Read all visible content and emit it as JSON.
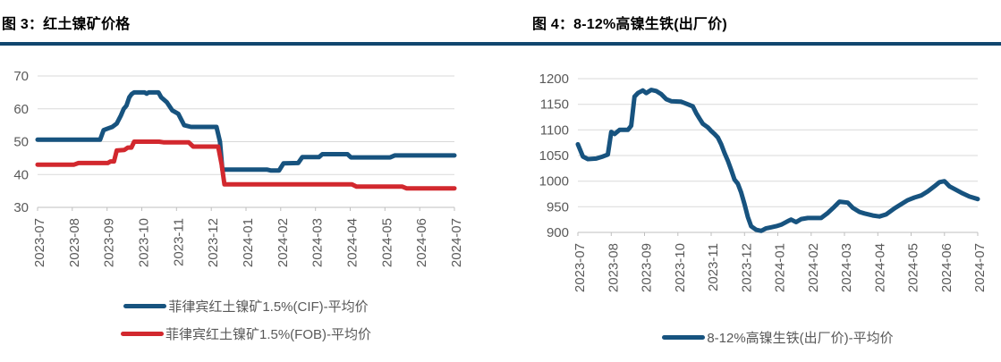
{
  "colors": {
    "title_rule": "#10466E",
    "grid": "#D9D9D9",
    "axis": "#BFBFBF",
    "tick_label": "#595959",
    "legend_text": "#595959"
  },
  "chart_data": [
    {
      "id": "chart0",
      "type": "line",
      "title": "图 3：红土镍矿价格",
      "x_categories": [
        "2023-07",
        "2023-08",
        "2023-09",
        "2023-10",
        "2023-11",
        "2023-12",
        "2024-01",
        "2024-02",
        "2024-03",
        "2024-04",
        "2024-05",
        "2024-06",
        "2024-07"
      ],
      "ylim": [
        30,
        70
      ],
      "y_step": 10,
      "grid": true,
      "legend_position": "bottom",
      "series": [
        {
          "name": "菲律宾红土镍矿1.5%(CIF)-平均价",
          "color": "#17537F",
          "points": [
            [
              0,
              50.6
            ],
            [
              1.8,
              50.6
            ],
            [
              1.9,
              53.5
            ],
            [
              2.02,
              54
            ],
            [
              2.15,
              54.5
            ],
            [
              2.28,
              55.5
            ],
            [
              2.4,
              58
            ],
            [
              2.48,
              60
            ],
            [
              2.56,
              61
            ],
            [
              2.64,
              63.5
            ],
            [
              2.71,
              64.5
            ],
            [
              2.78,
              65
            ],
            [
              3.08,
              65
            ],
            [
              3.14,
              64.6
            ],
            [
              3.2,
              65
            ],
            [
              3.48,
              65
            ],
            [
              3.56,
              63.5
            ],
            [
              3.72,
              62
            ],
            [
              3.88,
              59.5
            ],
            [
              4.05,
              58.5
            ],
            [
              4.22,
              55
            ],
            [
              4.42,
              54.5
            ],
            [
              5.15,
              54.5
            ],
            [
              5.25,
              50
            ],
            [
              5.32,
              41.5
            ],
            [
              6.6,
              41.5
            ],
            [
              6.72,
              41.2
            ],
            [
              6.95,
              41.2
            ],
            [
              7.08,
              43.4
            ],
            [
              7.5,
              43.5
            ],
            [
              7.62,
              45.3
            ],
            [
              8.1,
              45.3
            ],
            [
              8.2,
              46.2
            ],
            [
              8.92,
              46.2
            ],
            [
              9.02,
              45.2
            ],
            [
              10.15,
              45.2
            ],
            [
              10.28,
              45.8
            ],
            [
              12,
              45.8
            ]
          ]
        },
        {
          "name": "菲律宾红土镍矿1.5%(FOB)-平均价",
          "color": "#D2282E",
          "points": [
            [
              0,
              43
            ],
            [
              1.05,
              43
            ],
            [
              1.18,
              43.5
            ],
            [
              2.02,
              43.5
            ],
            [
              2.1,
              44
            ],
            [
              2.2,
              44
            ],
            [
              2.28,
              47.3
            ],
            [
              2.5,
              47.5
            ],
            [
              2.6,
              48.2
            ],
            [
              2.7,
              48.2
            ],
            [
              2.78,
              50
            ],
            [
              3.5,
              50
            ],
            [
              3.62,
              49.8
            ],
            [
              4.35,
              49.8
            ],
            [
              4.48,
              48.5
            ],
            [
              5.2,
              48.5
            ],
            [
              5.3,
              43
            ],
            [
              5.38,
              37
            ],
            [
              9.05,
              37
            ],
            [
              9.18,
              36.3
            ],
            [
              10.5,
              36.3
            ],
            [
              10.62,
              35.8
            ],
            [
              12,
              35.8
            ]
          ]
        }
      ]
    },
    {
      "id": "chart1",
      "type": "line",
      "title": "图 4：8-12%高镍生铁(出厂价)",
      "x_categories": [
        "2023-07",
        "2023-08",
        "2023-09",
        "2023-10",
        "2023-11",
        "2023-12",
        "2024-01",
        "2024-02",
        "2024-03",
        "2024-04",
        "2024-05",
        "2024-06",
        "2024-07"
      ],
      "ylim": [
        900,
        1200
      ],
      "y_step": 50,
      "grid": true,
      "legend_position": "bottom",
      "series": [
        {
          "name": "8-12%高镍生铁(出厂价)-平均价",
          "color": "#17537F",
          "points": [
            [
              0,
              1072
            ],
            [
              0.15,
              1048
            ],
            [
              0.3,
              1043
            ],
            [
              0.55,
              1044
            ],
            [
              0.75,
              1048
            ],
            [
              0.9,
              1052
            ],
            [
              1.0,
              1096
            ],
            [
              1.1,
              1092
            ],
            [
              1.25,
              1100
            ],
            [
              1.5,
              1100
            ],
            [
              1.6,
              1108
            ],
            [
              1.7,
              1165
            ],
            [
              1.8,
              1172
            ],
            [
              1.95,
              1177
            ],
            [
              2.05,
              1172
            ],
            [
              2.2,
              1178
            ],
            [
              2.35,
              1176
            ],
            [
              2.5,
              1170
            ],
            [
              2.65,
              1160
            ],
            [
              2.8,
              1156
            ],
            [
              3.1,
              1155
            ],
            [
              3.3,
              1150
            ],
            [
              3.45,
              1146
            ],
            [
              3.55,
              1133
            ],
            [
              3.65,
              1122
            ],
            [
              3.75,
              1112
            ],
            [
              3.9,
              1105
            ],
            [
              4.0,
              1098
            ],
            [
              4.1,
              1092
            ],
            [
              4.2,
              1085
            ],
            [
              4.3,
              1072
            ],
            [
              4.4,
              1055
            ],
            [
              4.5,
              1040
            ],
            [
              4.6,
              1022
            ],
            [
              4.7,
              1003
            ],
            [
              4.8,
              995
            ],
            [
              4.9,
              978
            ],
            [
              5.0,
              955
            ],
            [
              5.1,
              930
            ],
            [
              5.2,
              912
            ],
            [
              5.35,
              905
            ],
            [
              5.5,
              903
            ],
            [
              5.65,
              908
            ],
            [
              5.8,
              910
            ],
            [
              5.95,
              912
            ],
            [
              6.1,
              915
            ],
            [
              6.3,
              922
            ],
            [
              6.4,
              925
            ],
            [
              6.55,
              920
            ],
            [
              6.7,
              926
            ],
            [
              6.9,
              928
            ],
            [
              7.3,
              928
            ],
            [
              7.5,
              938
            ],
            [
              7.7,
              950
            ],
            [
              7.85,
              960
            ],
            [
              8.1,
              958
            ],
            [
              8.25,
              948
            ],
            [
              8.45,
              940
            ],
            [
              8.6,
              937
            ],
            [
              8.85,
              933
            ],
            [
              9.05,
              931
            ],
            [
              9.25,
              935
            ],
            [
              9.5,
              947
            ],
            [
              9.7,
              955
            ],
            [
              9.9,
              963
            ],
            [
              10.1,
              968
            ],
            [
              10.3,
              972
            ],
            [
              10.5,
              980
            ],
            [
              10.7,
              990
            ],
            [
              10.85,
              998
            ],
            [
              11.0,
              1000
            ],
            [
              11.15,
              990
            ],
            [
              11.35,
              983
            ],
            [
              11.55,
              976
            ],
            [
              11.75,
              970
            ],
            [
              12,
              965
            ]
          ]
        }
      ]
    }
  ]
}
